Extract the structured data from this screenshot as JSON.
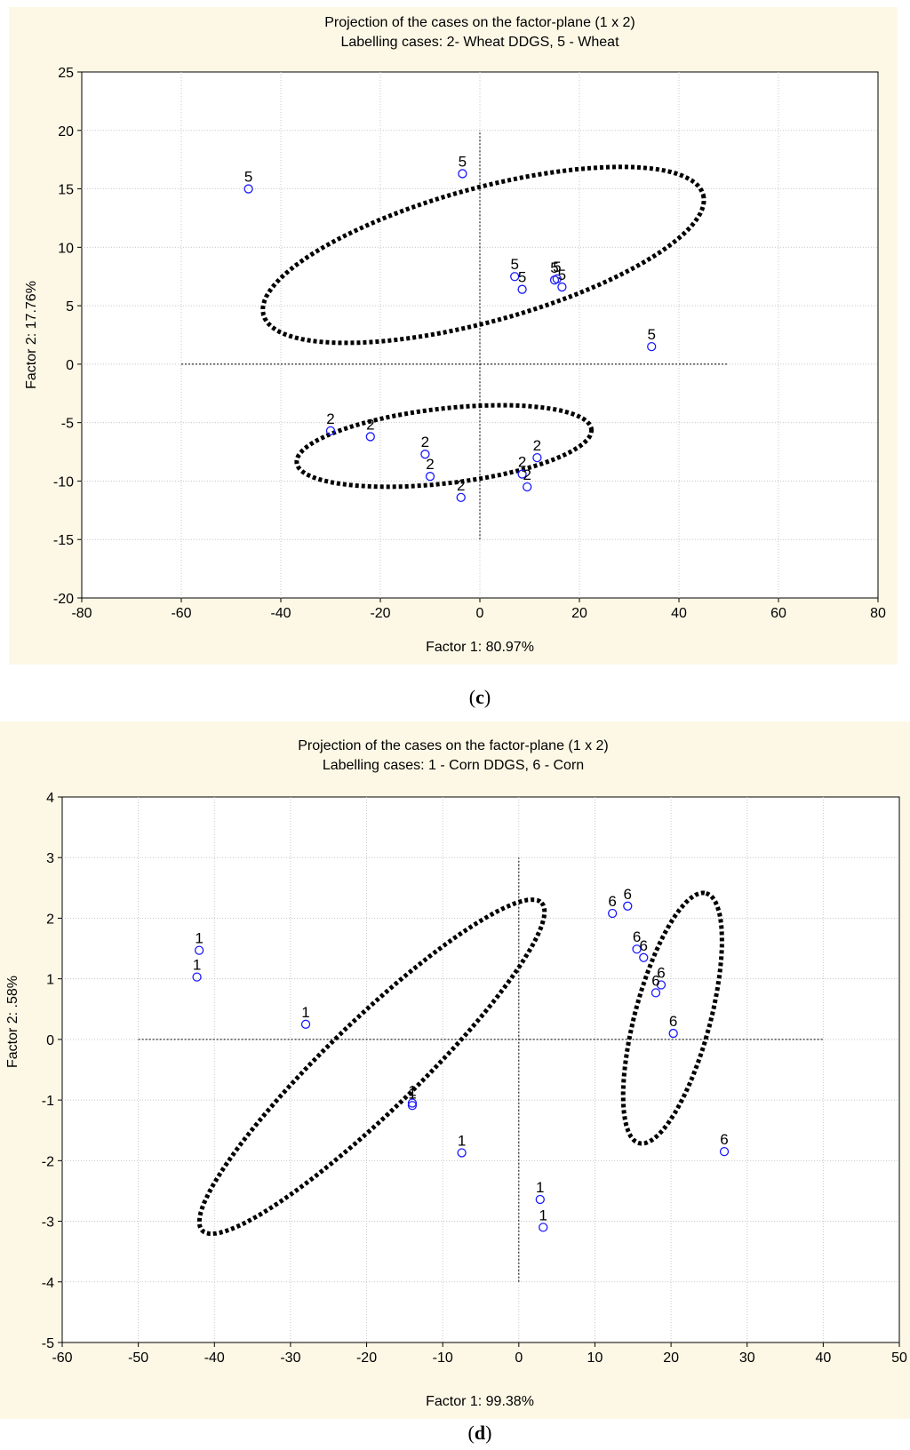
{
  "chart_data": [
    {
      "panel": "(c)",
      "type": "scatter",
      "title": "Projection of the cases on the factor-plane (1 x 2)",
      "subtitle": "Labelling cases: 2- Wheat DDGS, 5 - Wheat",
      "xlabel": "Factor 1: 80.97%",
      "ylabel": "Factor 2: 17.76%",
      "xlim": [
        -80,
        80
      ],
      "ylim": [
        -20,
        25
      ],
      "xticks": [
        -80,
        -60,
        -40,
        -20,
        0,
        20,
        40,
        60,
        80
      ],
      "yticks": [
        -20,
        -15,
        -10,
        -5,
        0,
        5,
        10,
        15,
        20,
        25
      ],
      "grid": true,
      "points": [
        {
          "x": -46.5,
          "y": 15.0,
          "label": "5"
        },
        {
          "x": -3.5,
          "y": 16.3,
          "label": "5"
        },
        {
          "x": 7.0,
          "y": 7.5,
          "label": "5"
        },
        {
          "x": 8.5,
          "y": 6.4,
          "label": "5"
        },
        {
          "x": 15.5,
          "y": 7.3,
          "label": "5"
        },
        {
          "x": 15.0,
          "y": 7.2,
          "label": "5"
        },
        {
          "x": 16.5,
          "y": 6.6,
          "label": "5"
        },
        {
          "x": 34.5,
          "y": 1.5,
          "label": "5"
        },
        {
          "x": -30.0,
          "y": -5.7,
          "label": "2"
        },
        {
          "x": -22.0,
          "y": -6.2,
          "label": "2"
        },
        {
          "x": -11.0,
          "y": -7.7,
          "label": "2"
        },
        {
          "x": -10.0,
          "y": -9.6,
          "label": "2"
        },
        {
          "x": -3.8,
          "y": -11.4,
          "label": "2"
        },
        {
          "x": 8.5,
          "y": -9.4,
          "label": "2"
        },
        {
          "x": 9.5,
          "y": -10.5,
          "label": "2"
        },
        {
          "x": 11.5,
          "y": -8.0,
          "label": "2"
        }
      ],
      "reference_lines": {
        "horizontal_y": 0,
        "horizontal_from_x": -60,
        "horizontal_to_x": 50,
        "vertical_x": 0,
        "vertical_from_y": -15,
        "vertical_to_y": 20
      },
      "ellipses": [
        {
          "cx": 0.7,
          "cy": 9.35,
          "rx": 45.8,
          "ry": 5.7,
          "tilt": -15.3
        },
        {
          "cx": -7.2,
          "cy": -7.0,
          "rx": 29.8,
          "ry": 3.2,
          "tilt": -6.5
        }
      ]
    },
    {
      "panel": "(d)",
      "type": "scatter",
      "title": "Projection of the cases on the factor-plane (1 x 2)",
      "subtitle": "Labelling cases: 1 - Corn DDGS, 6 - Corn",
      "xlabel": "Factor 1: 99.38%",
      "ylabel": "Factor 2:  .58%",
      "xlim": [
        -60,
        50
      ],
      "ylim": [
        -5,
        4
      ],
      "xticks": [
        -60,
        -50,
        -40,
        -30,
        -20,
        -10,
        0,
        10,
        20,
        30,
        40,
        50
      ],
      "yticks": [
        -5,
        -4,
        -3,
        -2,
        -1,
        0,
        1,
        2,
        3,
        4
      ],
      "grid": true,
      "points": [
        {
          "x": -42.0,
          "y": 1.47,
          "label": "1"
        },
        {
          "x": -42.3,
          "y": 1.03,
          "label": "1"
        },
        {
          "x": -28.0,
          "y": 0.25,
          "label": "1"
        },
        {
          "x": -14.0,
          "y": -1.05,
          "label": "1"
        },
        {
          "x": -14.0,
          "y": -1.09,
          "label": "1"
        },
        {
          "x": -7.5,
          "y": -1.87,
          "label": "1"
        },
        {
          "x": 2.8,
          "y": -2.64,
          "label": "1"
        },
        {
          "x": 3.2,
          "y": -3.1,
          "label": "1"
        },
        {
          "x": 12.3,
          "y": 2.08,
          "label": "6"
        },
        {
          "x": 14.3,
          "y": 2.2,
          "label": "6"
        },
        {
          "x": 15.5,
          "y": 1.49,
          "label": "6"
        },
        {
          "x": 16.4,
          "y": 1.35,
          "label": "6"
        },
        {
          "x": 18.7,
          "y": 0.9,
          "label": "6"
        },
        {
          "x": 18.0,
          "y": 0.77,
          "label": "6"
        },
        {
          "x": 20.3,
          "y": 0.1,
          "label": "6"
        },
        {
          "x": 27.0,
          "y": -1.85,
          "label": "6"
        }
      ],
      "reference_lines": {
        "horizontal_y": 0,
        "horizontal_from_x": -50,
        "horizontal_to_x": 40,
        "vertical_x": 0,
        "vertical_from_y": -4,
        "vertical_to_y": 3
      },
      "ellipses": [
        {
          "cx": -19.3,
          "cy": -0.45,
          "rx": 31.0,
          "ry": 0.75,
          "tilt": -44
        },
        {
          "cx": 20.2,
          "cy": 0.35,
          "rx": 17.0,
          "ry": 0.62,
          "tilt": -75
        }
      ]
    }
  ]
}
